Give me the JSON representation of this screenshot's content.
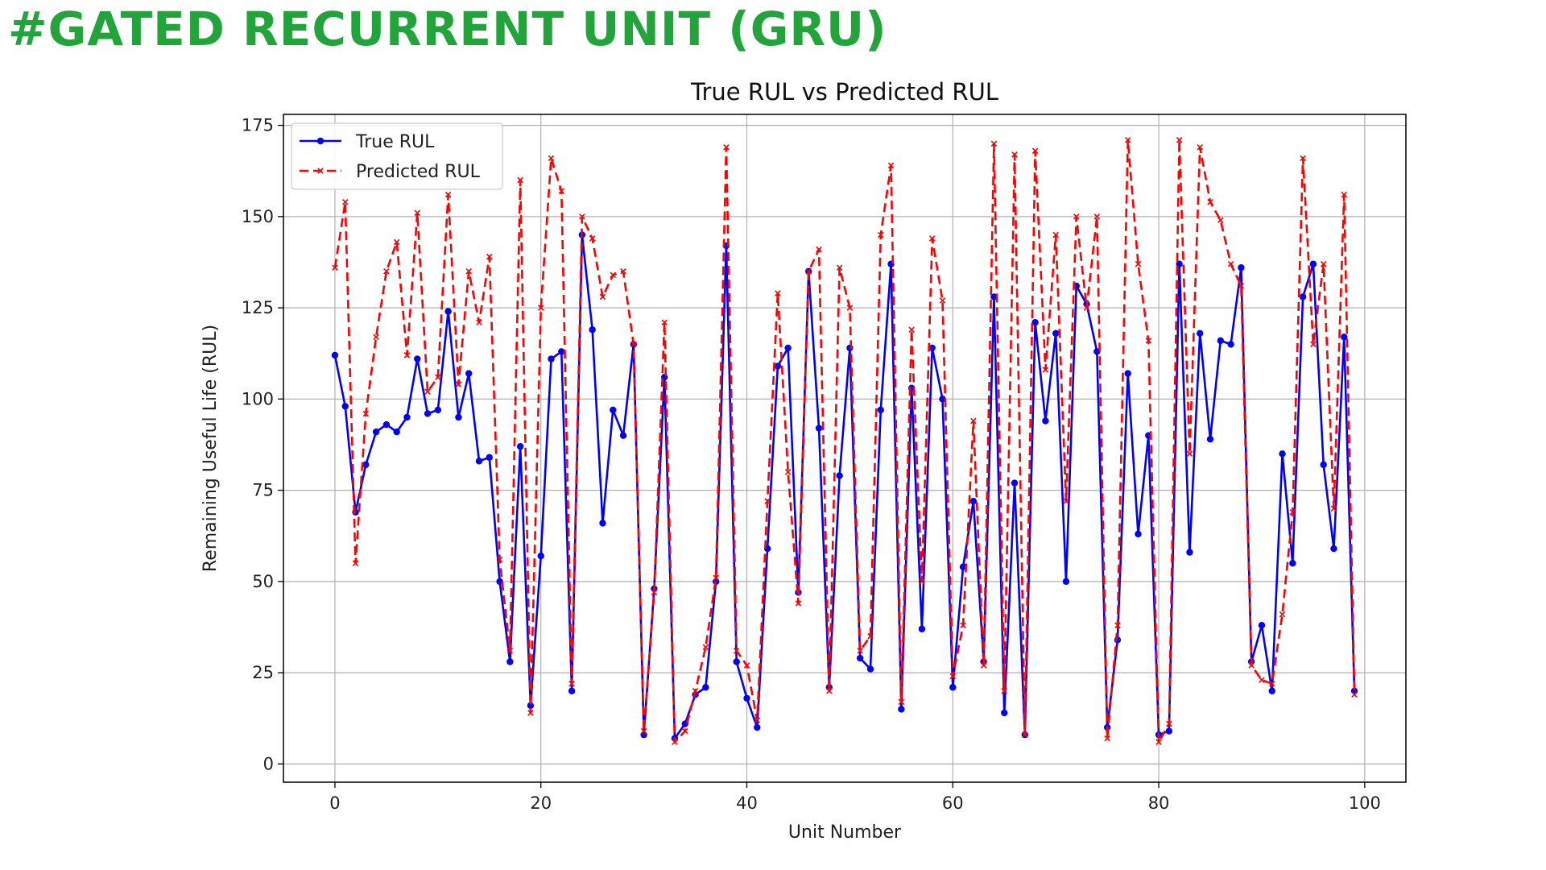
{
  "page": {
    "title": "#GATED RECURRENT UNIT (GRU)",
    "title_color": "#21a53b"
  },
  "chart_data": {
    "type": "line",
    "title": "True RUL vs Predicted RUL",
    "xlabel": "Unit Number",
    "ylabel": "Remaining Useful Life (RUL)",
    "xlim": [
      -5,
      104
    ],
    "ylim": [
      -5,
      178
    ],
    "xticks": [
      0,
      20,
      40,
      60,
      80,
      100
    ],
    "yticks": [
      0,
      25,
      50,
      75,
      100,
      125,
      150,
      175
    ],
    "grid": true,
    "legend_position": "top-left",
    "x": [
      0,
      1,
      2,
      3,
      4,
      5,
      6,
      7,
      8,
      9,
      10,
      11,
      12,
      13,
      14,
      15,
      16,
      17,
      18,
      19,
      20,
      21,
      22,
      23,
      24,
      25,
      26,
      27,
      28,
      29,
      30,
      31,
      32,
      33,
      34,
      35,
      36,
      37,
      38,
      39,
      40,
      41,
      42,
      43,
      44,
      45,
      46,
      47,
      48,
      49,
      50,
      51,
      52,
      53,
      54,
      55,
      56,
      57,
      58,
      59,
      60,
      61,
      62,
      63,
      64,
      65,
      66,
      67,
      68,
      69,
      70,
      71,
      72,
      73,
      74,
      75,
      76,
      77,
      78,
      79,
      80,
      81,
      82,
      83,
      84,
      85,
      86,
      87,
      88,
      89,
      90,
      91,
      92,
      93,
      94,
      95,
      96,
      97,
      98,
      99
    ],
    "series": [
      {
        "name": "True RUL",
        "color": "#0000ff",
        "style": "solid",
        "marker": "circle",
        "values": [
          112,
          98,
          69,
          82,
          91,
          93,
          91,
          95,
          111,
          96,
          97,
          124,
          95,
          107,
          83,
          84,
          50,
          28,
          87,
          16,
          57,
          111,
          113,
          20,
          145,
          119,
          66,
          97,
          90,
          115,
          8,
          48,
          106,
          7,
          11,
          19,
          21,
          50,
          142,
          28,
          18,
          10,
          59,
          109,
          114,
          47,
          135,
          92,
          21,
          79,
          114,
          29,
          26,
          97,
          137,
          15,
          103,
          37,
          114,
          100,
          21,
          54,
          72,
          28,
          128,
          14,
          77,
          8,
          121,
          94,
          118,
          50,
          131,
          126,
          113,
          10,
          34,
          107,
          63,
          90,
          8,
          9,
          137,
          58,
          118,
          89,
          116,
          115,
          136,
          28,
          38,
          20,
          85,
          55,
          128,
          137,
          82,
          59,
          117,
          20
        ]
      },
      {
        "name": "Predicted RUL",
        "color": "#ff0000",
        "style": "dashed",
        "marker": "x",
        "values": [
          136,
          154,
          55,
          96,
          117,
          135,
          143,
          112,
          151,
          102,
          106,
          156,
          104,
          135,
          121,
          139,
          56,
          31,
          160,
          14,
          125,
          166,
          157,
          22,
          150,
          144,
          128,
          134,
          135,
          115,
          9,
          47,
          121,
          6,
          9,
          20,
          32,
          51,
          169,
          31,
          27,
          12,
          72,
          129,
          80,
          44,
          135,
          141,
          20,
          136,
          125,
          31,
          35,
          145,
          164,
          17,
          119,
          50,
          144,
          127,
          24,
          38,
          94,
          27,
          170,
          20,
          167,
          8,
          168,
          108,
          145,
          72,
          150,
          125,
          150,
          7,
          38,
          171,
          137,
          116,
          6,
          11,
          171,
          85,
          169,
          154,
          149,
          137,
          131,
          27,
          23,
          22,
          41,
          69,
          166,
          115,
          137,
          70,
          156,
          19
        ]
      }
    ]
  }
}
